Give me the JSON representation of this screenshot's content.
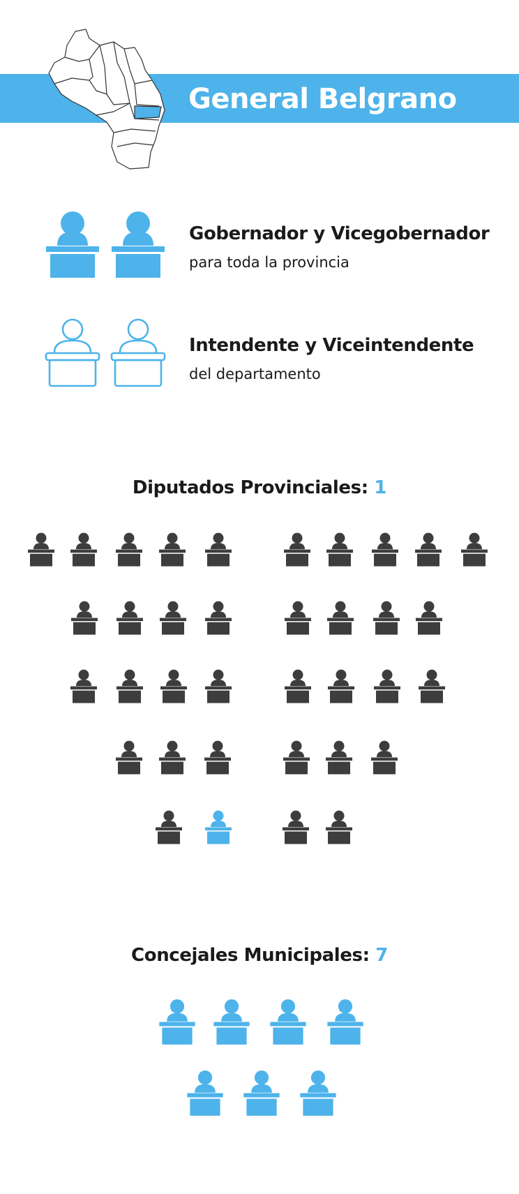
{
  "header": {
    "title": "General Belgrano",
    "banner_color": "#4db3ea"
  },
  "map": {
    "icon": "province-map-icon",
    "highlight_color": "#4db3ea"
  },
  "roles": [
    {
      "title": "Gobernador y Vicegobernador",
      "subtitle": "para toda la provincia",
      "icon": "podium-person-filled-icon",
      "style": "filled",
      "color": "#4db3ea"
    },
    {
      "title": "Intendente y Viceintendente",
      "subtitle": "del departamento",
      "icon": "podium-person-outline-icon",
      "style": "outline",
      "color": "#4db3ea"
    }
  ],
  "diputados": {
    "label": "Diputados Provinciales:",
    "count": "1",
    "total_seats": 36,
    "highlighted_seats": 1,
    "seat_color": "#3d3d3d",
    "highlight_color": "#4db3ea"
  },
  "concejales": {
    "label": "Concejales Municipales:",
    "count": "7",
    "seats": 7,
    "color": "#4db3ea"
  }
}
